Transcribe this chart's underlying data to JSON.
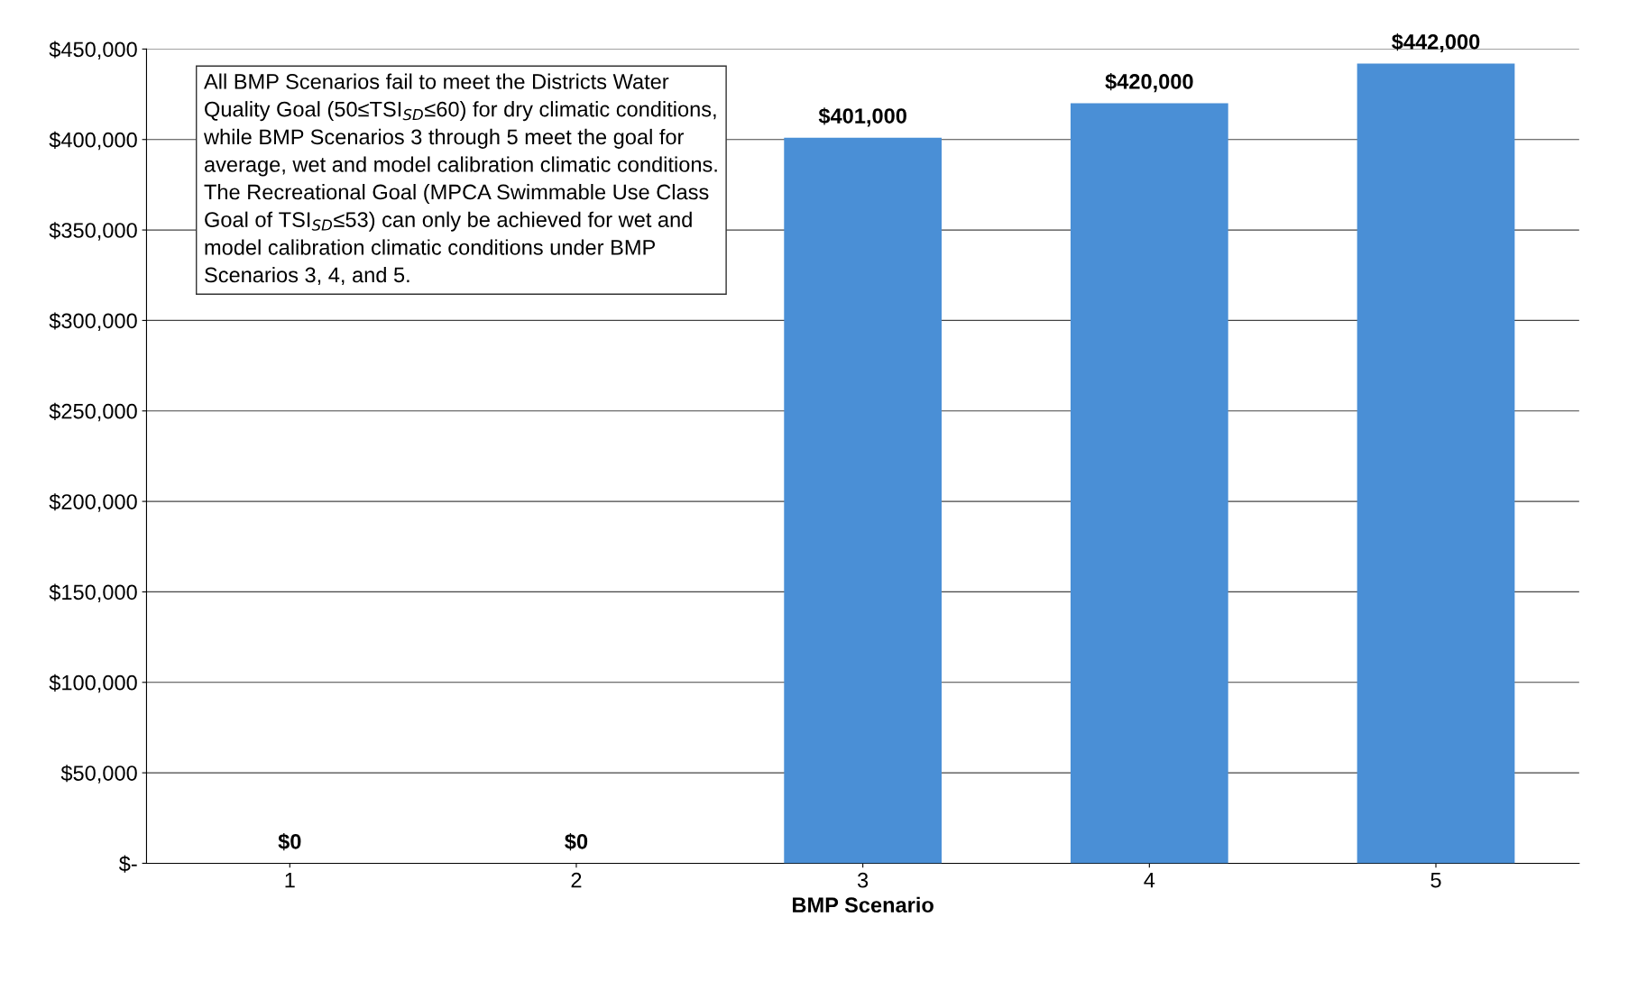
{
  "chart_data": {
    "type": "bar",
    "xlabel": "BMP Scenario",
    "categories": [
      "1",
      "2",
      "3",
      "4",
      "5"
    ],
    "values": [
      0,
      0,
      401000,
      420000,
      442000
    ],
    "value_labels": [
      "$0",
      "$0",
      "$401,000",
      "$420,000",
      "$442,000"
    ],
    "color": "#4a8fd6",
    "ylim": [
      0,
      450000
    ],
    "yticks": [
      {
        "value": 0,
        "label": "$-"
      },
      {
        "value": 50000,
        "label": "$50,000"
      },
      {
        "value": 100000,
        "label": "$100,000"
      },
      {
        "value": 150000,
        "label": "$150,000"
      },
      {
        "value": 200000,
        "label": "$200,000"
      },
      {
        "value": 250000,
        "label": "$250,000"
      },
      {
        "value": 300000,
        "label": "$300,000"
      },
      {
        "value": 350000,
        "label": "$350,000"
      },
      {
        "value": 400000,
        "label": "$400,000"
      },
      {
        "value": 450000,
        "label": "$450,000"
      }
    ],
    "grid": "y",
    "annotations": [
      "All BMP Scenarios fail to meet the Districts Water Quality Goal (50≤TSI$_{SD}$≤60) for dry climatic conditions, while BMP Scenarios 3 through 5 meet the goal for average, wet and model calibration climatic conditions. The Recreational Goal (MPCA Swimmable Use Class Goal of TSI$_{SD}$≤53) can only be achieved for wet and model calibration climatic conditions under BMP Scenarios 3, 4, and 5."
    ]
  }
}
